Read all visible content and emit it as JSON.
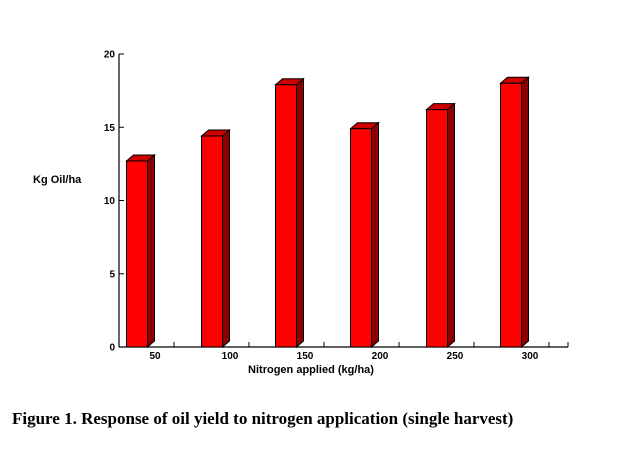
{
  "caption": "Figure 1. Response of oil yield to nitrogen application (single harvest)",
  "chart_data": {
    "type": "bar",
    "categories": [
      "50",
      "100",
      "150",
      "200",
      "250",
      "300"
    ],
    "values": [
      12.7,
      14.4,
      17.9,
      14.9,
      16.2,
      18.0
    ],
    "xlabel": "Nitrogen applied (kg/ha)",
    "ylabel": "Kg Oil/ha",
    "ylim": [
      0,
      20
    ],
    "yticks": [
      "0",
      "5",
      "10",
      "15",
      "20"
    ],
    "style": "3d",
    "bar_color": "#ff0000",
    "bar_side_color": "#8b0000",
    "bar_top_color": "#cc0000",
    "grid": false,
    "legend": "none"
  }
}
